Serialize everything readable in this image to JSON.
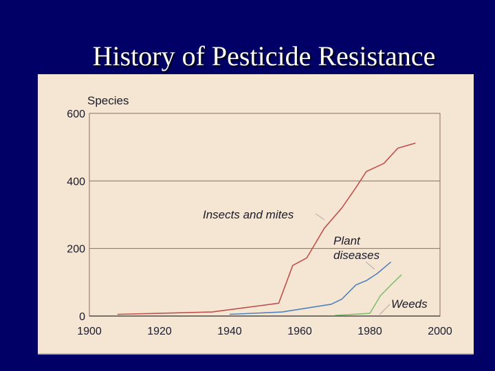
{
  "slide": {
    "title": "History of Pesticide Resistance"
  },
  "chart_data": {
    "type": "line",
    "title": "",
    "xlabel": "",
    "ylabel": "Species",
    "xlim": [
      1900,
      2000
    ],
    "ylim": [
      0,
      600
    ],
    "xticks": [
      1900,
      1920,
      1940,
      1960,
      1980,
      2000
    ],
    "yticks": [
      0,
      200,
      400,
      600
    ],
    "grid": {
      "horizontal": true,
      "vertical": false
    },
    "series": [
      {
        "name": "Insects and mites",
        "label_lines": [
          "Insects and mites"
        ],
        "color": "#c0504d",
        "points": [
          [
            1908,
            5
          ],
          [
            1935,
            12
          ],
          [
            1954,
            38
          ],
          [
            1958,
            150
          ],
          [
            1962,
            172
          ],
          [
            1967,
            260
          ],
          [
            1972,
            320
          ],
          [
            1976,
            380
          ],
          [
            1979,
            428
          ],
          [
            1984,
            452
          ],
          [
            1988,
            497
          ],
          [
            1993,
            512
          ]
        ]
      },
      {
        "name": "Plant diseases",
        "label_lines": [
          "Plant",
          "diseases"
        ],
        "color": "#4f81bd",
        "points": [
          [
            1940,
            5
          ],
          [
            1955,
            12
          ],
          [
            1969,
            35
          ],
          [
            1972,
            50
          ],
          [
            1976,
            92
          ],
          [
            1979,
            105
          ],
          [
            1982,
            125
          ],
          [
            1986,
            160
          ]
        ]
      },
      {
        "name": "Weeds",
        "label_lines": [
          "Weeds"
        ],
        "color": "#7fbf6f",
        "points": [
          [
            1970,
            2
          ],
          [
            1980,
            8
          ],
          [
            1983,
            60
          ],
          [
            1986,
            92
          ],
          [
            1989,
            122
          ]
        ]
      }
    ]
  }
}
